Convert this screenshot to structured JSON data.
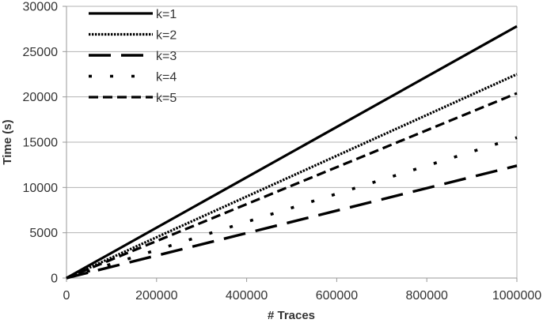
{
  "chart_data": {
    "type": "line",
    "xlabel": "# Traces",
    "ylabel": "Time (s)",
    "xlim": [
      0,
      1000000
    ],
    "ylim": [
      0,
      30000
    ],
    "xticks": [
      0,
      200000,
      400000,
      600000,
      800000,
      1000000
    ],
    "yticks": [
      0,
      5000,
      10000,
      15000,
      20000,
      25000,
      30000
    ],
    "xtick_labels": [
      "0",
      "200000",
      "400000",
      "600000",
      "800000",
      "1000000"
    ],
    "ytick_labels": [
      "0",
      "5000",
      "10000",
      "15000",
      "20000",
      "25000",
      "30000"
    ],
    "grid": "horizontal",
    "legend_position": "top-left",
    "series": [
      {
        "name": "k=1",
        "style": "solid",
        "x": [
          0,
          1000000
        ],
        "values": [
          0,
          27800
        ]
      },
      {
        "name": "k=2",
        "style": "dotted",
        "x": [
          0,
          1000000
        ],
        "values": [
          0,
          22500
        ]
      },
      {
        "name": "k=3",
        "style": "long-dash",
        "x": [
          0,
          1000000
        ],
        "values": [
          0,
          12400
        ]
      },
      {
        "name": "k=4",
        "style": "sparse-dot",
        "x": [
          0,
          1000000
        ],
        "values": [
          0,
          15500
        ]
      },
      {
        "name": "k=5",
        "style": "dash",
        "x": [
          0,
          1000000
        ],
        "values": [
          0,
          20400
        ]
      }
    ],
    "colors": {
      "line": "#000000",
      "grid": "#b3b3b3",
      "axis": "#999999",
      "text": "#333333"
    }
  }
}
